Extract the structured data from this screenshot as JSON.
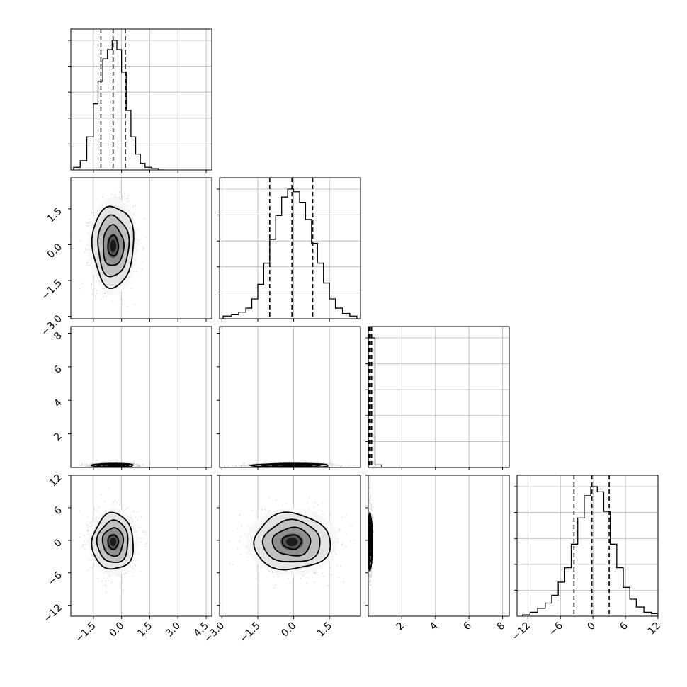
{
  "chart_data": {
    "type": "corner",
    "grid": true,
    "dimensions": [
      {
        "index": 0,
        "range": [
          -2.7,
          4.8
        ],
        "ticks": [
          -1.5,
          0.0,
          1.5,
          3.0,
          4.5
        ],
        "tick_labels": [
          "−1.5",
          "0.0",
          "1.5",
          "3.0",
          "4.5"
        ],
        "quantiles": [
          -1.1,
          -0.45,
          0.2
        ],
        "hist": {
          "edges": [
            -2.55,
            -2.2,
            -1.85,
            -1.5,
            -1.25,
            -1.0,
            -0.75,
            -0.5,
            -0.25,
            0.0,
            0.25,
            0.5,
            0.75,
            1.0,
            1.25,
            1.6,
            1.95,
            2.3
          ],
          "counts": [
            0.02,
            0.07,
            0.25,
            0.5,
            0.67,
            0.84,
            0.91,
            0.98,
            0.91,
            0.74,
            0.45,
            0.25,
            0.12,
            0.05,
            0.02,
            0.01,
            0
          ]
        }
      },
      {
        "index": 1,
        "range": [
          -3.1,
          2.8
        ],
        "ticks": [
          -3.0,
          -1.5,
          0.0,
          1.5
        ],
        "tick_labels": [
          "−3.0",
          "−1.5",
          "0.0",
          "1.5"
        ],
        "quantiles": [
          -1.0,
          -0.07,
          0.8
        ],
        "hist": {
          "edges": [
            -2.95,
            -2.6,
            -2.3,
            -2.0,
            -1.75,
            -1.5,
            -1.25,
            -1.0,
            -0.75,
            -0.5,
            -0.25,
            0.0,
            0.25,
            0.5,
            0.75,
            1.0,
            1.25,
            1.5,
            1.75,
            2.05,
            2.35,
            2.65
          ],
          "counts": [
            0.02,
            0.03,
            0.05,
            0.08,
            0.15,
            0.26,
            0.42,
            0.6,
            0.78,
            0.92,
            0.98,
            0.96,
            0.88,
            0.75,
            0.57,
            0.42,
            0.27,
            0.15,
            0.08,
            0.04,
            0.02
          ]
        }
      },
      {
        "index": 2,
        "range": [
          0.0,
          8.4
        ],
        "ticks": [
          2,
          4,
          6,
          8
        ],
        "tick_labels": [
          "2",
          "4",
          "6",
          "8"
        ],
        "quantiles": [
          0.05,
          0.12,
          0.2
        ],
        "hist": {
          "edges": [
            0.0,
            0.4,
            0.8
          ],
          "counts": [
            1.0,
            0.02
          ]
        }
      },
      {
        "index": 3,
        "range": [
          -14,
          12
        ],
        "ticks": [
          -12,
          -6,
          0,
          6,
          12
        ],
        "tick_labels": [
          "−12",
          "−6",
          "0",
          "6",
          "12"
        ],
        "quantiles": [
          -3.5,
          -0.2,
          3.0
        ],
        "hist": {
          "edges": [
            -13,
            -11.6,
            -10.2,
            -8.8,
            -7.6,
            -6.4,
            -5.2,
            -4.0,
            -2.8,
            -1.6,
            -0.4,
            0.8,
            2.0,
            3.2,
            4.4,
            5.6,
            6.8,
            8.0,
            9.4,
            10.8,
            12
          ],
          "counts": [
            0.01,
            0.03,
            0.06,
            0.1,
            0.16,
            0.26,
            0.37,
            0.55,
            0.75,
            0.92,
            0.99,
            0.95,
            0.8,
            0.55,
            0.37,
            0.22,
            0.13,
            0.07,
            0.03,
            0.02
          ]
        }
      }
    ],
    "pairs": [
      {
        "row": 1,
        "col": 0,
        "center": [
          -0.45,
          -0.05
        ],
        "sigma": [
          0.55,
          0.85
        ],
        "rho": 0.0
      },
      {
        "row": 2,
        "col": 0,
        "center": [
          -0.45,
          0.12
        ],
        "sigma": [
          0.55,
          0.06
        ],
        "rho": 0.0
      },
      {
        "row": 2,
        "col": 1,
        "center": [
          -0.07,
          0.12
        ],
        "sigma": [
          0.8,
          0.06
        ],
        "rho": 0.0
      },
      {
        "row": 3,
        "col": 0,
        "center": [
          -0.45,
          -0.3
        ],
        "sigma": [
          0.55,
          2.6
        ],
        "rho": 0.0
      },
      {
        "row": 3,
        "col": 1,
        "center": [
          -0.07,
          -0.3
        ],
        "sigma": [
          0.8,
          2.6
        ],
        "rho": 0.0
      },
      {
        "row": 3,
        "col": 2,
        "center": [
          0.12,
          -0.3
        ],
        "sigma": [
          0.06,
          2.6
        ],
        "rho": 0.0
      }
    ],
    "contour_levels_sigma": [
      0.5,
      1.0,
      1.5,
      2.0
    ]
  }
}
